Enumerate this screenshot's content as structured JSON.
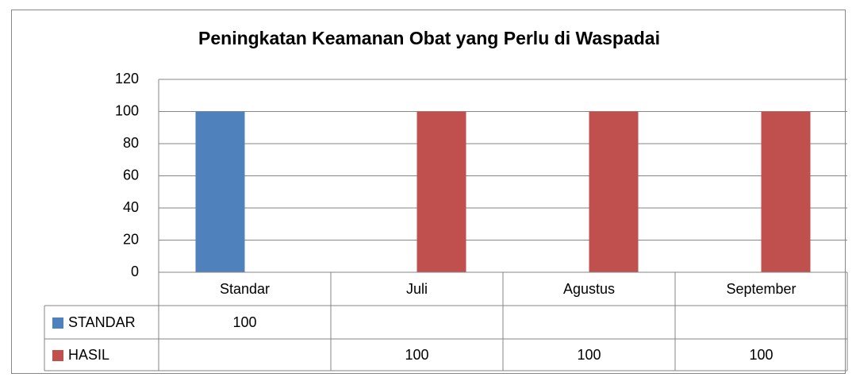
{
  "chart_data": {
    "type": "bar",
    "title": "Peningkatan Keamanan Obat yang Perlu di Waspadai",
    "categories": [
      "Standar",
      "Juli",
      "Agustus",
      "September"
    ],
    "series": [
      {
        "name": "STANDAR",
        "color": "#4f81bd",
        "values": [
          100,
          null,
          null,
          null
        ]
      },
      {
        "name": "HASIL",
        "color": "#c0504d",
        "values": [
          null,
          100,
          100,
          100
        ]
      }
    ],
    "ylim": [
      0,
      120
    ],
    "yticks": [
      0,
      20,
      40,
      60,
      80,
      100,
      120
    ],
    "grid": true,
    "data_table": true
  }
}
